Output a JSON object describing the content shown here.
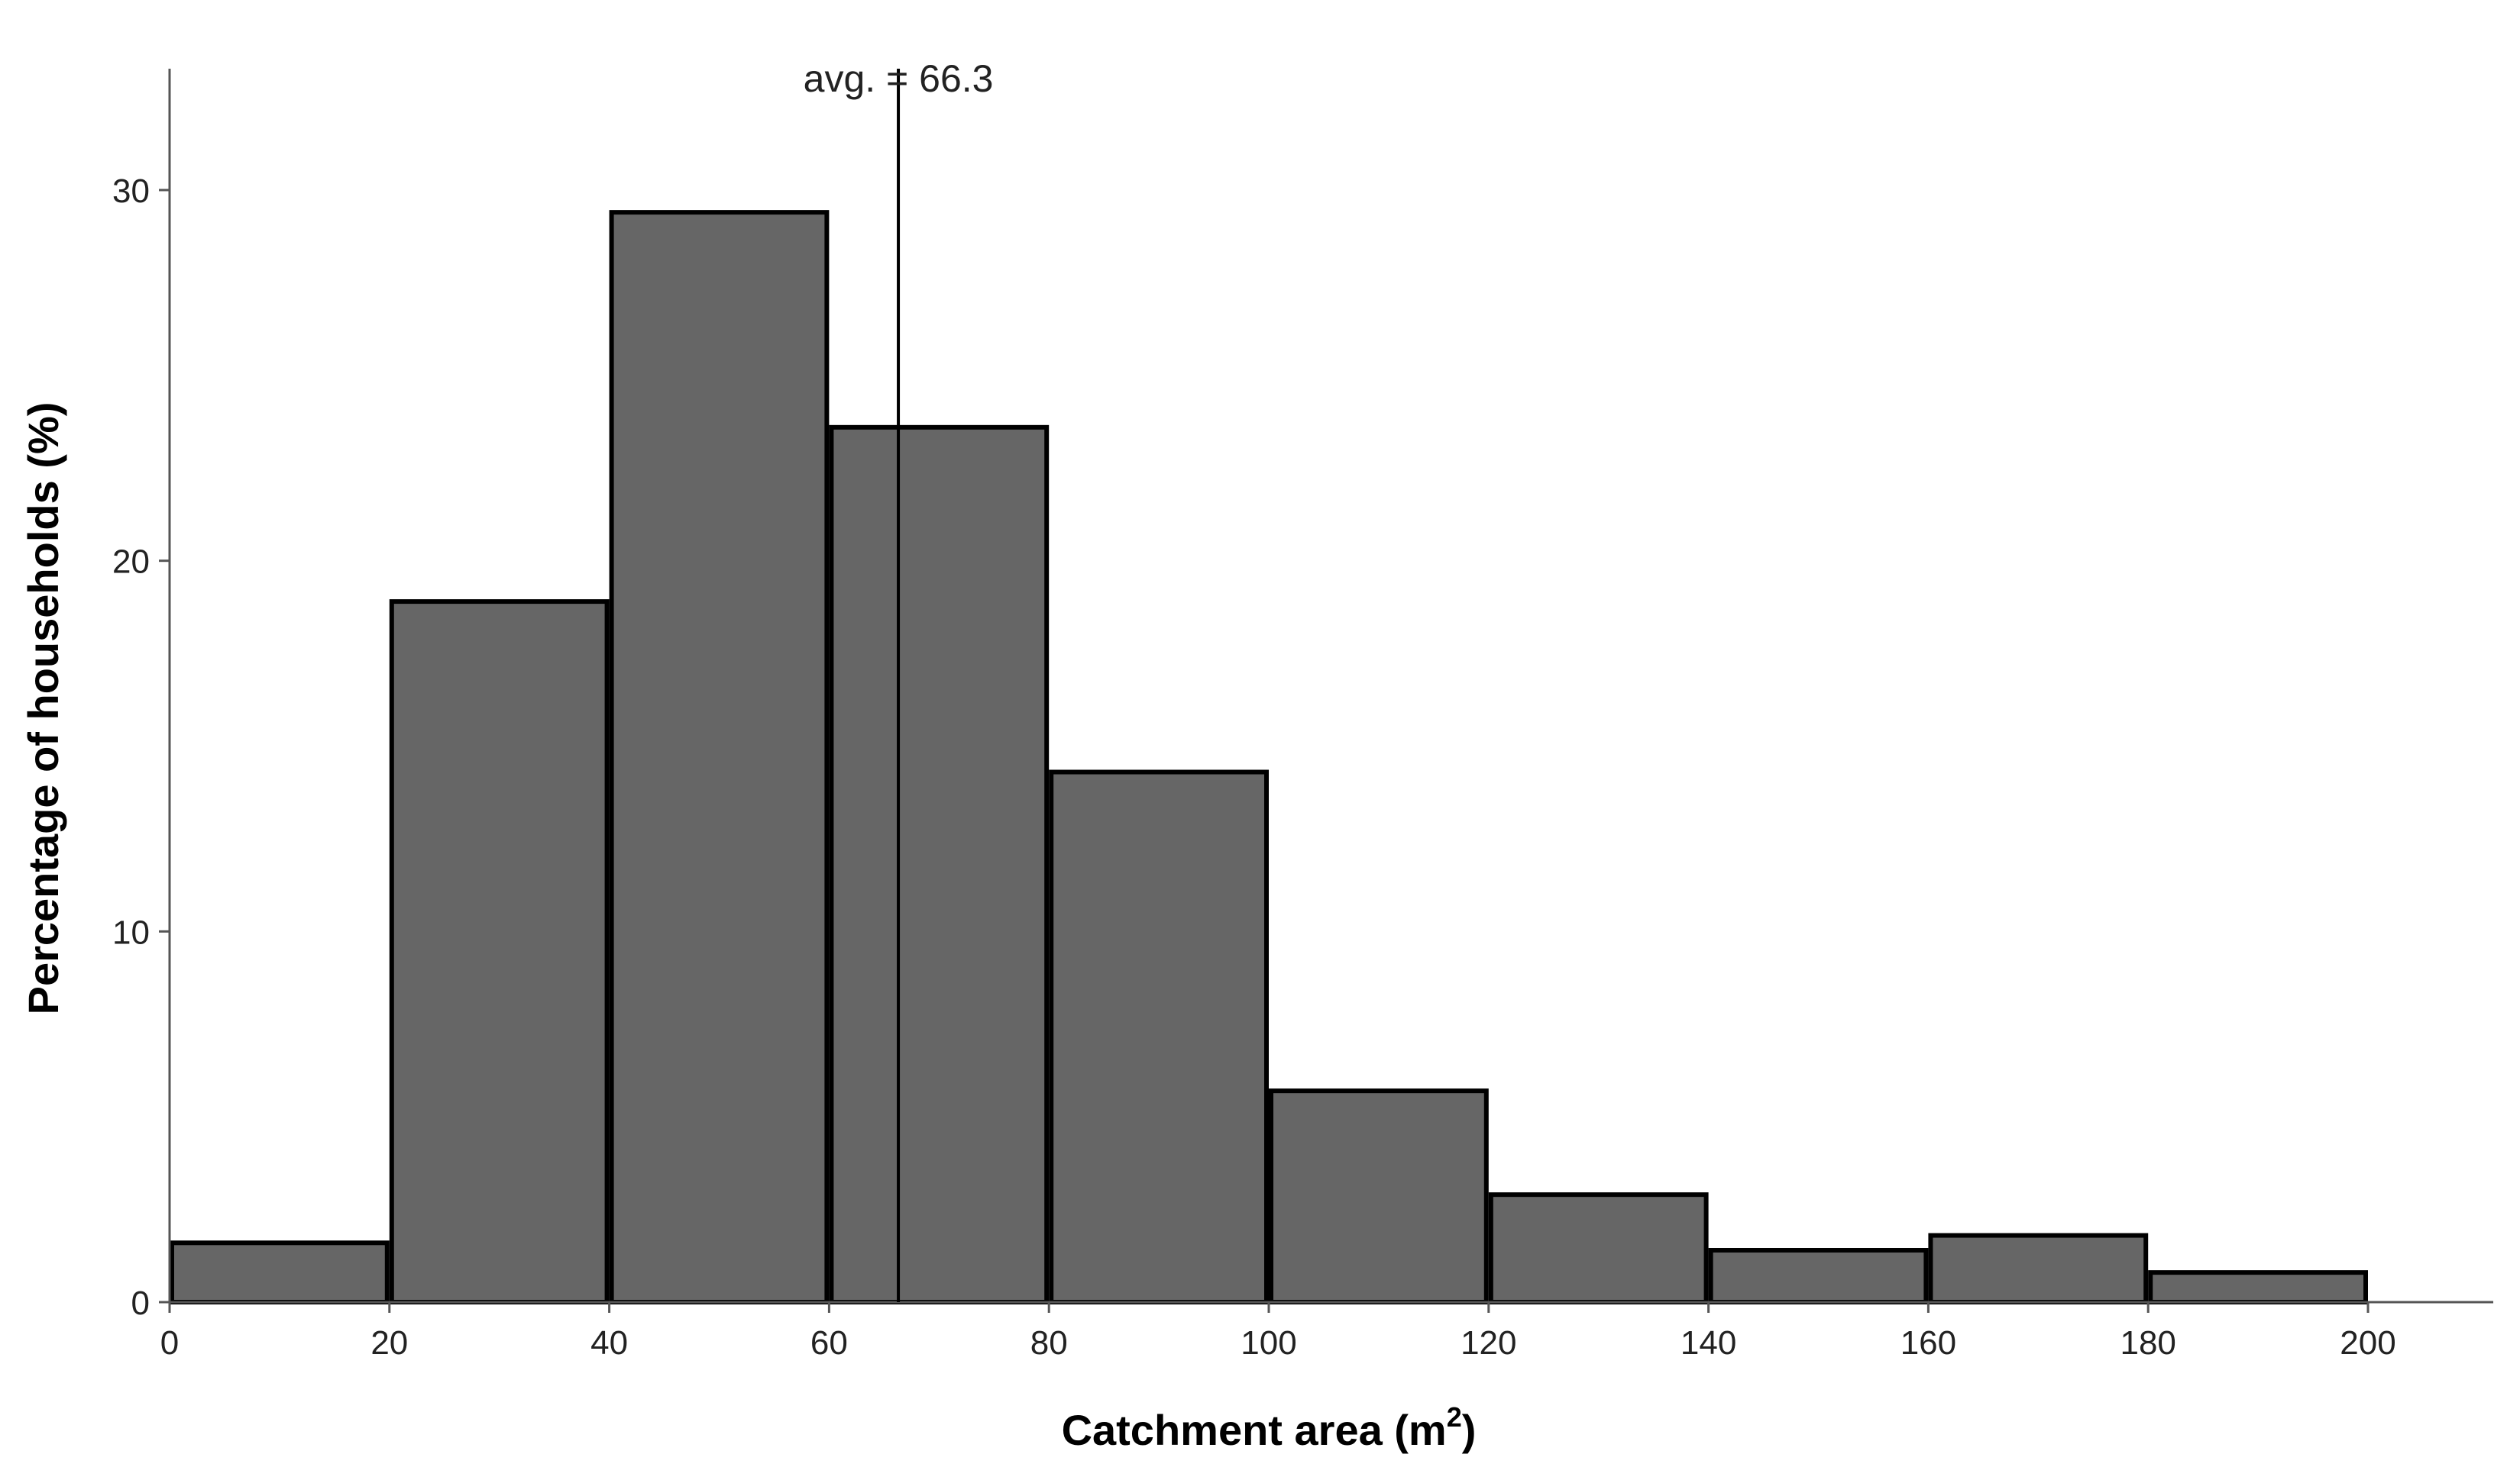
{
  "chart_data": {
    "type": "bar",
    "title": "",
    "xlabel": "Catchment area (m",
    "xlabel_superscript": "2",
    "xlabel_suffix": ")",
    "ylabel": "Percentage of households (%)",
    "bins": [
      {
        "x0": 0,
        "x1": 20,
        "value": 1.6
      },
      {
        "x0": 20,
        "x1": 40,
        "value": 18.9
      },
      {
        "x0": 40,
        "x1": 60,
        "value": 29.4
      },
      {
        "x0": 60,
        "x1": 80,
        "value": 23.6
      },
      {
        "x0": 80,
        "x1": 100,
        "value": 14.3
      },
      {
        "x0": 100,
        "x1": 120,
        "value": 5.7
      },
      {
        "x0": 120,
        "x1": 140,
        "value": 2.9
      },
      {
        "x0": 140,
        "x1": 160,
        "value": 1.4
      },
      {
        "x0": 160,
        "x1": 180,
        "value": 1.8
      },
      {
        "x0": 180,
        "x1": 200,
        "value": 0.8
      }
    ],
    "xlim": [
      0,
      210
    ],
    "ylim": [
      0,
      30
    ],
    "x_ticks": [
      0,
      20,
      40,
      60,
      80,
      100,
      120,
      140,
      160,
      180,
      200
    ],
    "y_ticks": [
      0,
      10,
      20,
      30
    ],
    "mean_line": {
      "value": 66.3,
      "label": "avg. = 66.3"
    },
    "grid": false,
    "bar_color": "#666666",
    "bar_edge_color": "#000000"
  }
}
